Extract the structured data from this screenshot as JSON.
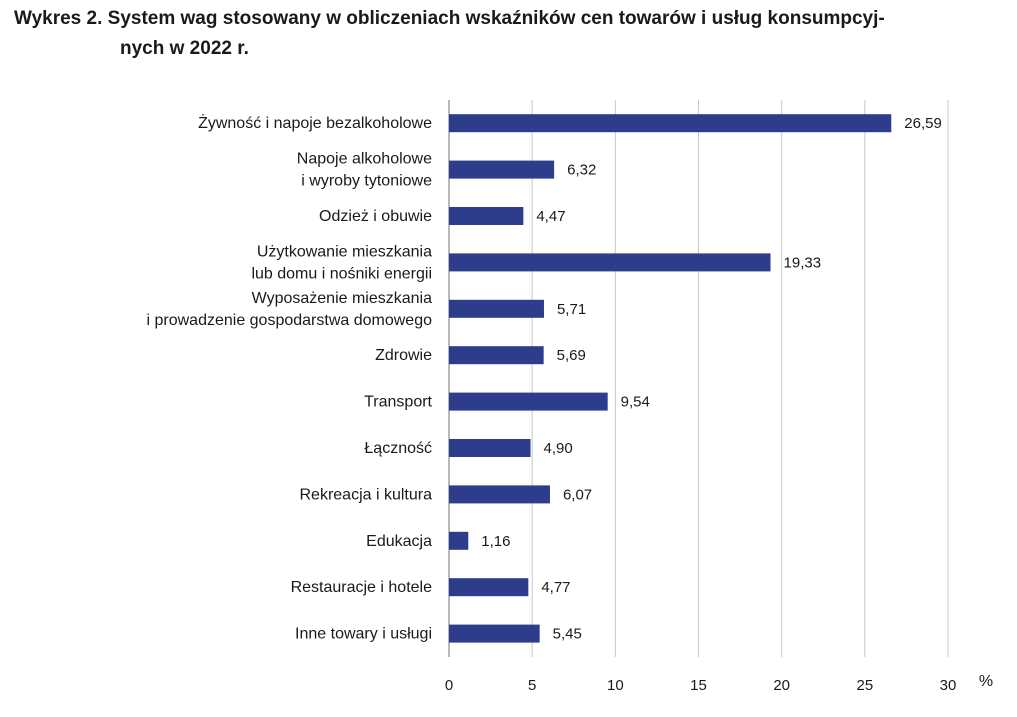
{
  "title_line1": "Wykres 2. System wag stosowany w obliczeniach wskaźników cen towarów i usług konsumpcyj-",
  "title_line2": "nych w 2022 r.",
  "chart_data": {
    "type": "bar",
    "orientation": "horizontal",
    "title": "Wykres 2. System wag stosowany w obliczeniach wskaźników cen towarów i usług konsumpcyjnych w 2022 r.",
    "unit": "%",
    "xlim": [
      0,
      30
    ],
    "xticks": [
      0,
      5,
      10,
      15,
      20,
      25,
      30
    ],
    "grid": true,
    "bar_color": "#2e3c8c",
    "categories": [
      [
        "Żywność i napoje bezalkoholowe"
      ],
      [
        "Napoje alkoholowe",
        "i wyroby tytoniowe"
      ],
      [
        "Odzież i obuwie"
      ],
      [
        "Użytkowanie mieszkania",
        "lub domu i nośniki energii"
      ],
      [
        "Wyposażenie mieszkania",
        "i prowadzenie gospodarstwa domowego"
      ],
      [
        "Zdrowie"
      ],
      [
        "Transport"
      ],
      [
        "Łączność"
      ],
      [
        "Rekreacja i kultura"
      ],
      [
        "Edukacja"
      ],
      [
        "Restauracje i hotele"
      ],
      [
        "Inne towary i usługi"
      ]
    ],
    "values": [
      26.59,
      6.32,
      4.47,
      19.33,
      5.71,
      5.69,
      9.54,
      4.9,
      6.07,
      1.16,
      4.77,
      5.45
    ],
    "value_labels": [
      "26,59",
      "6,32",
      "4,47",
      "19,33",
      "5,71",
      "5,69",
      "9,54",
      "4,90",
      "6,07",
      "1,16",
      "4,77",
      "5,45"
    ]
  }
}
